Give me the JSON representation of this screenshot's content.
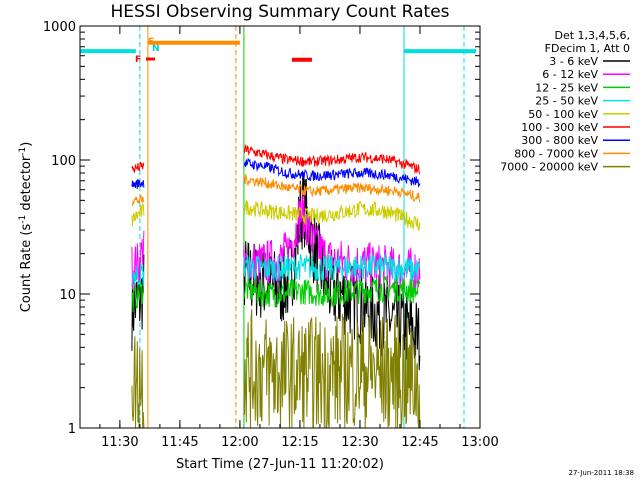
{
  "chart_data": {
    "type": "line",
    "title": "HESSI Observing Summary Count Rates",
    "xlabel": "Start Time (27-Jun-11 11:20:02)",
    "ylabel": "Count Rate (s⁻¹ detector⁻¹)",
    "ylabel_parts": {
      "a": "Count Rate (s",
      "b": "-1",
      "c": " detector",
      "d": "-1",
      "e": ")"
    },
    "y_scale": "log",
    "ylim": [
      1,
      1000
    ],
    "xlim": [
      "11:20:02",
      "13:00"
    ],
    "x_ticks": [
      "11:30",
      "11:45",
      "12:00",
      "12:15",
      "12:30",
      "12:45",
      "13:00"
    ],
    "y_ticks": [
      "1",
      "10",
      "100",
      "1000"
    ],
    "legend_header": [
      "Det 1,3,4,5,6,",
      "FDecim 1, Att 0"
    ],
    "legend_position": "top-right",
    "footer": "27-Jun-2011 18:38",
    "flags": {
      "S": "S",
      "N": "N",
      "F": "F"
    },
    "flag_colors": {
      "S": "#ff8c00",
      "N": "#00c8c8",
      "F": "#ff0000"
    },
    "vertical_markers": [
      {
        "t": "11:35",
        "color": "#00e0e0",
        "style": "dashed"
      },
      {
        "t": "11:37",
        "color": "#ff8c00",
        "style": "solid"
      },
      {
        "t": "11:59",
        "color": "#ff8c00",
        "style": "dashed"
      },
      {
        "t": "12:01",
        "color": "#00d000",
        "style": "solid"
      },
      {
        "t": "12:41",
        "color": "#00e0e0",
        "style": "solid"
      },
      {
        "t": "12:56",
        "color": "#00e0e0",
        "style": "dashed"
      }
    ],
    "bars": [
      {
        "name": "saa",
        "start": "11:20:02",
        "end": "11:34",
        "value": 650,
        "color": "#00e0e0"
      },
      {
        "name": "night",
        "start": "11:37",
        "end": "12:00",
        "value": 750,
        "color": "#ff8c00"
      },
      {
        "name": "flare",
        "start": "12:13",
        "end": "12:18",
        "value": 560,
        "color": "#ff0000"
      },
      {
        "name": "saa2",
        "start": "12:41",
        "end": "12:59",
        "value": 650,
        "color": "#00e0e0"
      }
    ],
    "series": [
      {
        "name": "3 - 6 keV",
        "color": "#000000",
        "seg1": {
          "t": [
            "11:33",
            "11:34",
            "11:35",
            "11:36"
          ],
          "v": [
            7.5,
            8.5,
            9,
            11
          ]
        },
        "seg2": {
          "t": [
            "12:01",
            "12:06",
            "12:10",
            "12:12",
            "12:14",
            "12:15",
            "12:16",
            "12:18",
            "12:22",
            "12:28",
            "12:35",
            "12:40",
            "12:44",
            "12:45"
          ],
          "v": [
            14,
            12,
            11,
            12,
            20,
            40,
            45,
            25,
            11,
            9,
            7,
            6,
            5,
            4.5
          ]
        }
      },
      {
        "name": "6 - 12 keV",
        "color": "#ff00ff",
        "seg1": {
          "t": [
            "11:33",
            "11:34",
            "11:35",
            "11:36"
          ],
          "v": [
            16,
            16.5,
            17,
            25
          ]
        },
        "seg2": {
          "t": [
            "12:01",
            "12:06",
            "12:10",
            "12:12",
            "12:14",
            "12:15",
            "12:16",
            "12:18",
            "12:22",
            "12:28",
            "12:35",
            "12:40",
            "12:44",
            "12:45"
          ],
          "v": [
            16,
            17,
            18,
            21,
            30,
            40,
            38,
            25,
            18,
            17,
            16,
            15,
            15,
            15
          ]
        }
      },
      {
        "name": "12 - 25 keV",
        "color": "#00cc00",
        "seg1": {
          "t": [
            "11:33",
            "11:34",
            "11:35",
            "11:36"
          ],
          "v": [
            9,
            9.5,
            10,
            11
          ]
        },
        "seg2": {
          "t": [
            "12:01",
            "12:06",
            "12:10",
            "12:15",
            "12:22",
            "12:28",
            "12:35",
            "12:40",
            "12:44",
            "12:45"
          ],
          "v": [
            11,
            10,
            10,
            10.5,
            10,
            10.5,
            11,
            11,
            10.5,
            10
          ]
        }
      },
      {
        "name": "25 - 50 keV",
        "color": "#00e0e0",
        "seg1": {
          "t": [
            "11:33",
            "11:34",
            "11:35",
            "11:36"
          ],
          "v": [
            14,
            14,
            14,
            14
          ]
        },
        "seg2": {
          "t": [
            "12:01",
            "12:06",
            "12:10",
            "12:15",
            "12:22",
            "12:28",
            "12:35",
            "12:40",
            "12:44",
            "12:45"
          ],
          "v": [
            16,
            15.5,
            15.5,
            16,
            15.5,
            16,
            16,
            15.5,
            15,
            15
          ]
        }
      },
      {
        "name": "50 - 100 keV",
        "color": "#cccc00",
        "seg1": {
          "t": [
            "11:33",
            "11:34",
            "11:35",
            "11:36"
          ],
          "v": [
            35,
            38,
            40,
            42
          ]
        },
        "seg2": {
          "t": [
            "12:01",
            "12:06",
            "12:12",
            "12:18",
            "12:24",
            "12:30",
            "12:36",
            "12:40",
            "12:45"
          ],
          "v": [
            45,
            42,
            40,
            38,
            40,
            43,
            42,
            38,
            33
          ]
        }
      },
      {
        "name": "100 - 300 keV",
        "color": "#ff0000",
        "seg1": {
          "t": [
            "11:33",
            "11:34",
            "11:35",
            "11:36"
          ],
          "v": [
            85,
            87,
            88,
            90
          ]
        },
        "seg2": {
          "t": [
            "12:01",
            "12:06",
            "12:12",
            "12:18",
            "12:24",
            "12:30",
            "12:36",
            "12:40",
            "12:45"
          ],
          "v": [
            120,
            110,
            100,
            97,
            100,
            105,
            102,
            95,
            85
          ]
        }
      },
      {
        "name": "300 - 800 keV",
        "color": "#0000ff",
        "seg1": {
          "t": [
            "11:33",
            "11:34",
            "11:35",
            "11:36"
          ],
          "v": [
            65,
            66,
            67,
            68
          ]
        },
        "seg2": {
          "t": [
            "12:01",
            "12:06",
            "12:12",
            "12:18",
            "12:24",
            "12:30",
            "12:36",
            "12:40",
            "12:45"
          ],
          "v": [
            95,
            90,
            80,
            76,
            78,
            80,
            78,
            74,
            68
          ]
        }
      },
      {
        "name": "800 - 7000 keV",
        "color": "#ff8c00",
        "seg1": {
          "t": [
            "11:33",
            "11:34",
            "11:35",
            "11:36"
          ],
          "v": [
            50,
            50,
            50,
            50
          ]
        },
        "seg2": {
          "t": [
            "12:01",
            "12:06",
            "12:12",
            "12:18",
            "12:24",
            "12:30",
            "12:36",
            "12:40",
            "12:45"
          ],
          "v": [
            72,
            68,
            62,
            58,
            60,
            62,
            60,
            58,
            52
          ]
        }
      },
      {
        "name": "7000 - 20000 keV",
        "color": "#808000",
        "seg1": {
          "t": [
            "11:33",
            "11:34",
            "11:35",
            "11:36"
          ],
          "v": [
            2.5,
            2,
            2.5,
            2
          ]
        },
        "seg2": {
          "t": [
            "12:01",
            "12:10",
            "12:20",
            "12:30",
            "12:40",
            "12:45"
          ],
          "v": [
            2.8,
            2.5,
            2.5,
            2.7,
            2.5,
            2.2
          ]
        }
      }
    ]
  }
}
